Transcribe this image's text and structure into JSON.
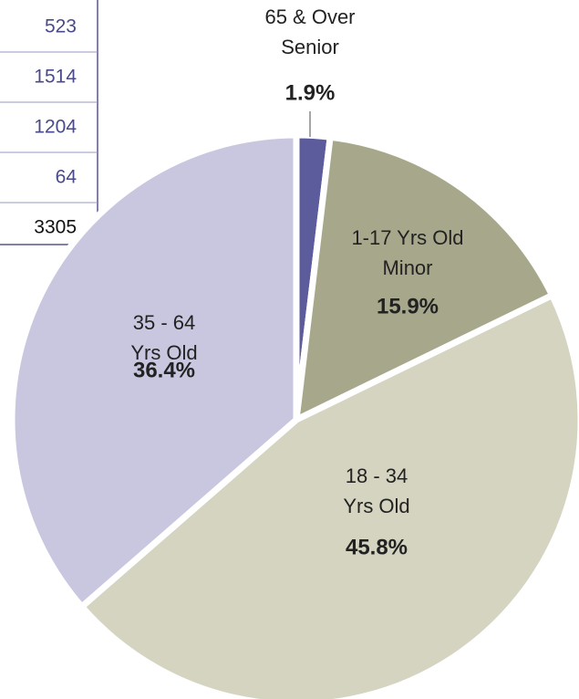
{
  "chart_data": {
    "type": "pie",
    "categories": [
      [
        "65 & Over",
        "Senior"
      ],
      [
        "1-17 Yrs Old",
        "Minor"
      ],
      [
        "18 - 34",
        "Yrs Old"
      ],
      [
        "35 - 64",
        "Yrs Old"
      ]
    ],
    "values": [
      1.9,
      15.9,
      45.8,
      36.4
    ],
    "value_labels": [
      "1.9%",
      "15.9%",
      "45.8%",
      "36.4%"
    ],
    "colors": [
      "#5c5b9c",
      "#a7a88b",
      "#d4d4c1",
      "#c9c7df"
    ]
  },
  "table": {
    "rows": [
      523,
      1514,
      1204,
      64
    ],
    "total": 3305
  }
}
